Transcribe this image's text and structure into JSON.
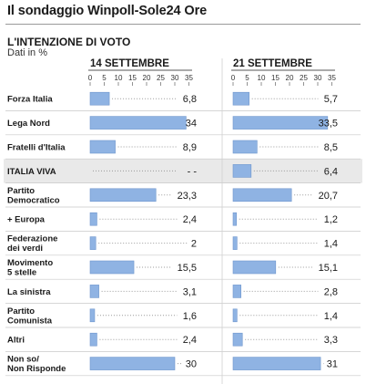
{
  "header": {
    "title": "Il sondaggio Winpoll-Sole24 Ore",
    "subtitle": "L'INTENZIONE DI VOTO",
    "unit": "Dati in %"
  },
  "colors": {
    "bar": "#8fb3e3",
    "bar_stroke": "#6f96cc",
    "highlight_row": "#e9e9e9",
    "dots": "#9a9a9a"
  },
  "chart_data": {
    "type": "bar",
    "orientation": "horizontal",
    "categories": [
      "Forza Italia",
      "Lega Nord",
      "Fratelli d'Italia",
      "ITALIA VIVA",
      "Partito\nDemocratico",
      "+ Europa",
      "Federazione\ndei verdi",
      "Movimento\n5 stelle",
      "La sinistra",
      "Partito\nComunista",
      "Altri",
      "Non so/\nNon Risponde"
    ],
    "highlight_index": 3,
    "xlim": [
      0,
      35
    ],
    "xticks": [
      "0",
      "5",
      "10",
      "15",
      "20",
      "25",
      "30",
      "35"
    ],
    "grid": false,
    "series": [
      {
        "name": "14 SETTEMBRE",
        "values": [
          6.8,
          34,
          8.9,
          null,
          23.3,
          2.4,
          2,
          15.5,
          3.1,
          1.6,
          2.4,
          30
        ],
        "labels": [
          "6,8",
          "34",
          "8,9",
          "- -",
          "23,3",
          "2,4",
          "2",
          "15,5",
          "3,1",
          "1,6",
          "2,4",
          "30"
        ]
      },
      {
        "name": "21 SETTEMBRE",
        "values": [
          5.7,
          33.5,
          8.5,
          6.4,
          20.7,
          1.2,
          1.4,
          15.1,
          2.8,
          1.4,
          3.3,
          31
        ],
        "labels": [
          "5,7",
          "33,5",
          "8,5",
          "6,4",
          "20,7",
          "1,2",
          "1,4",
          "15,1",
          "2,8",
          "1,4",
          "3,3",
          "31"
        ]
      }
    ]
  }
}
